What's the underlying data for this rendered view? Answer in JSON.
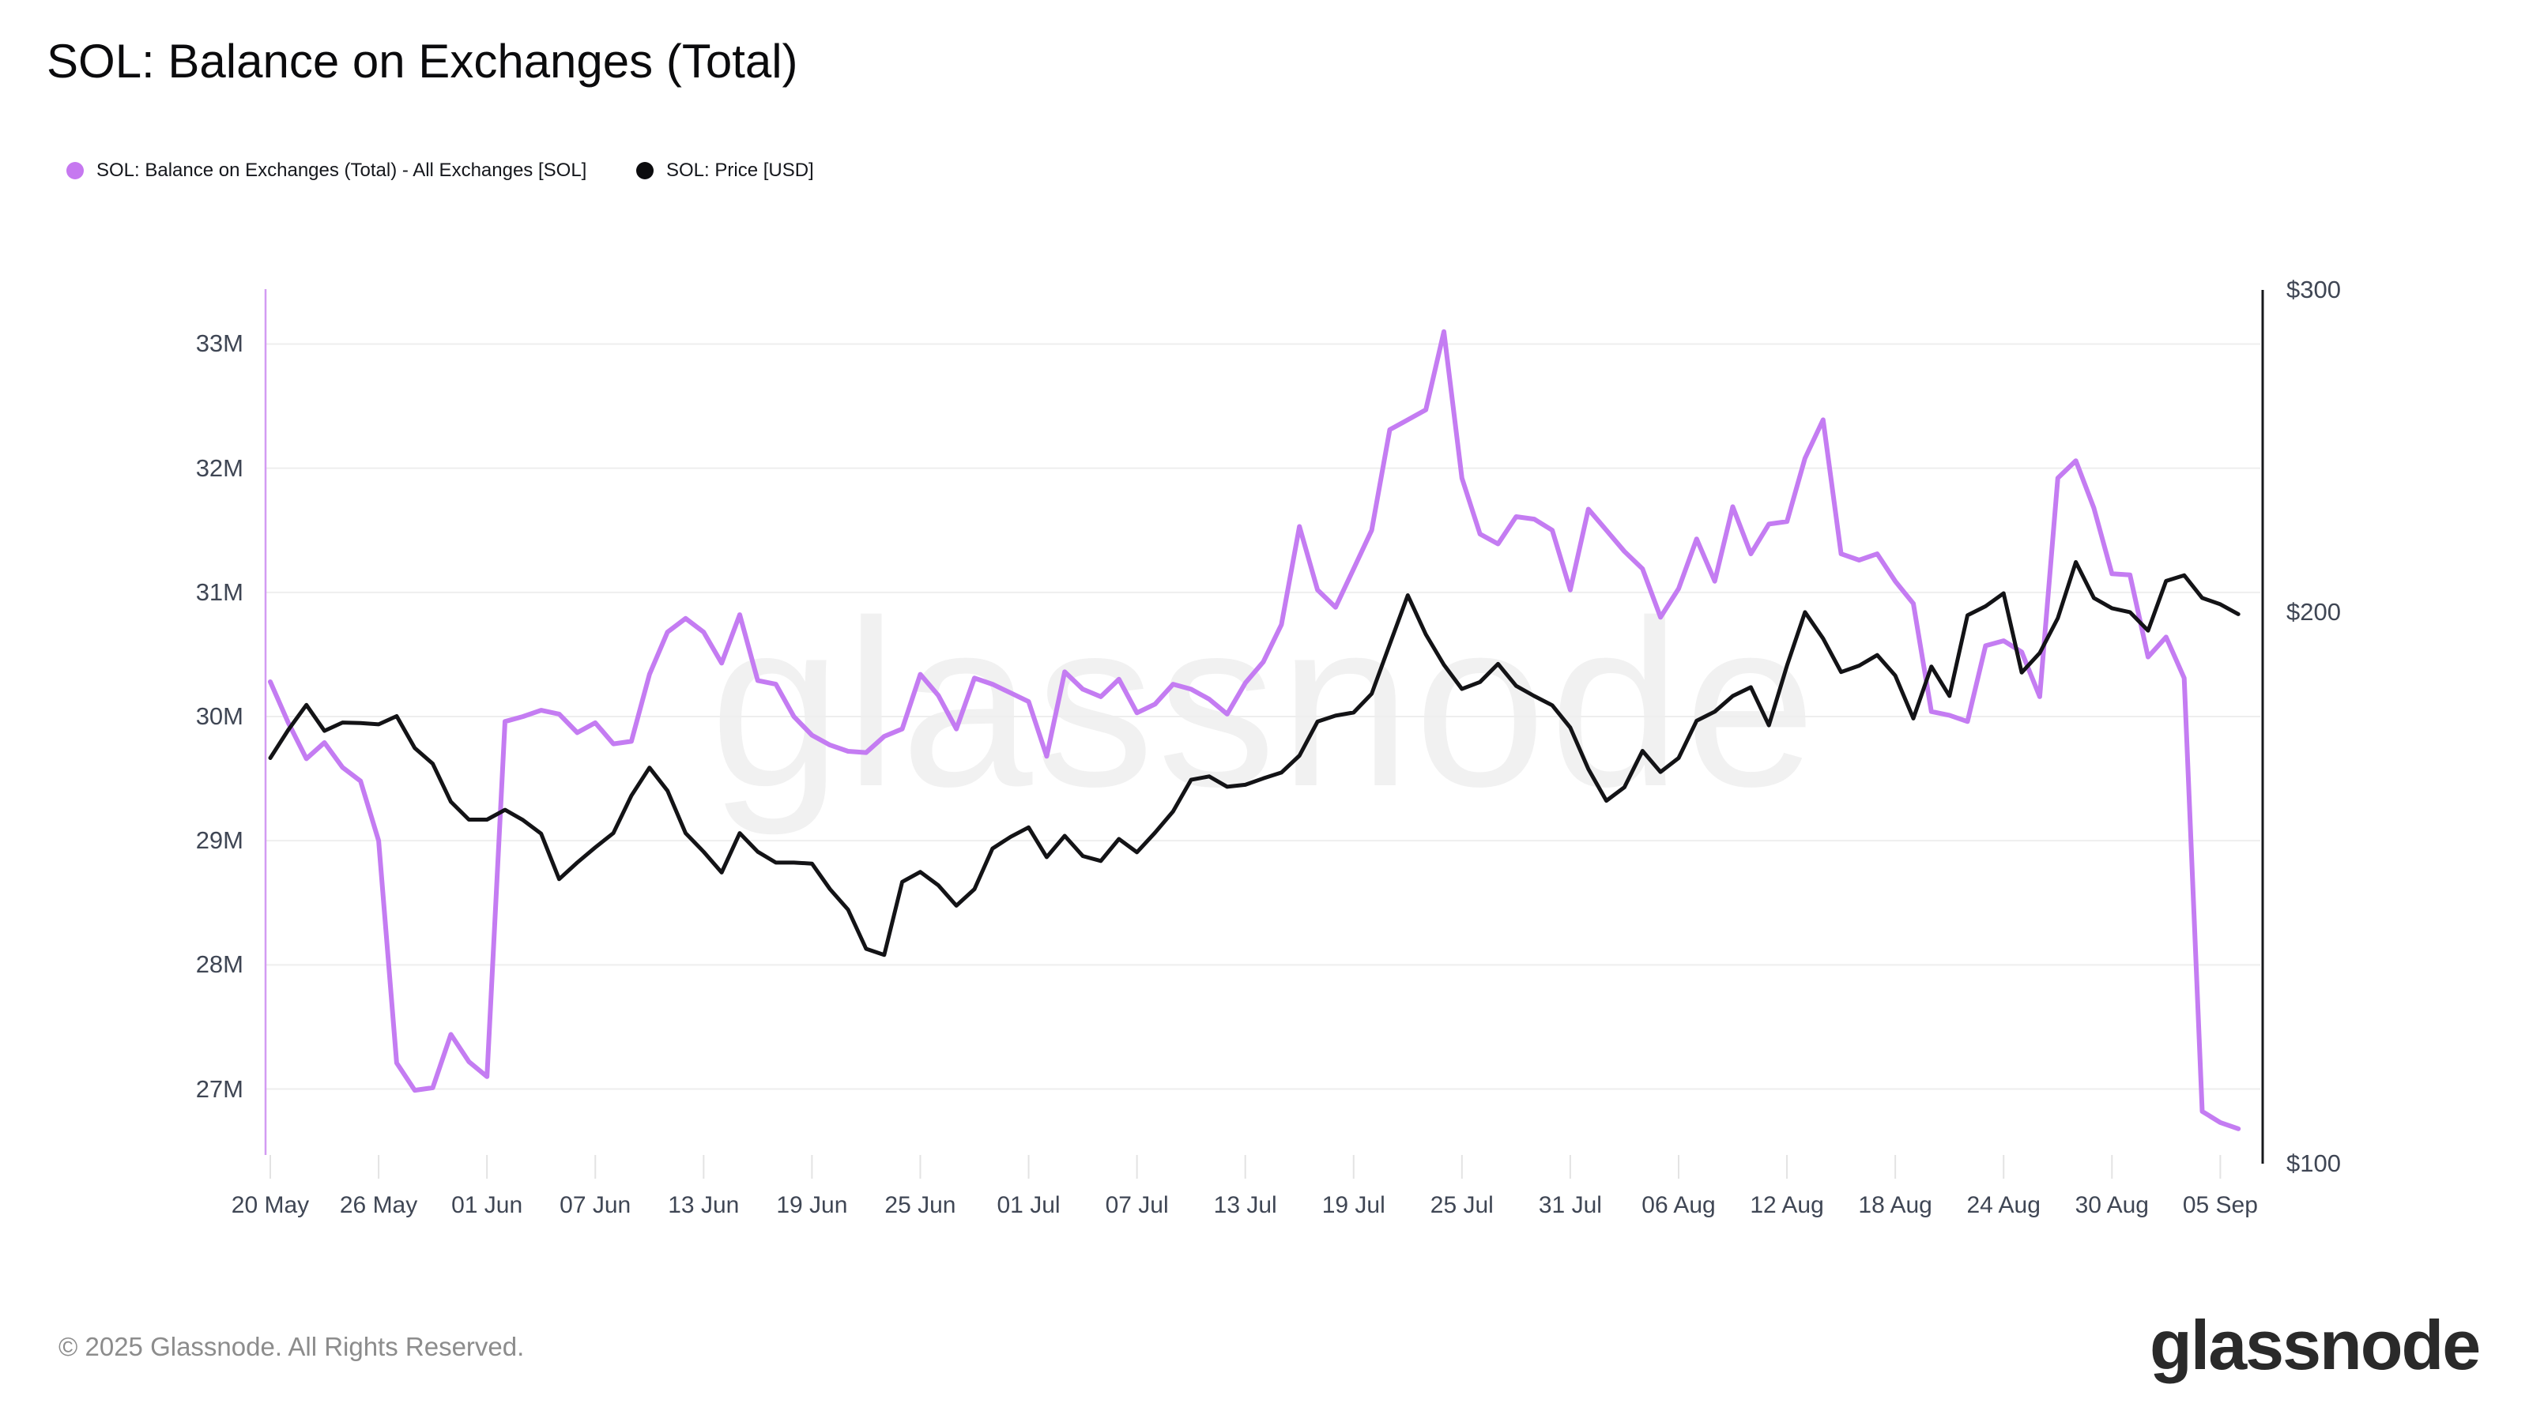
{
  "header": {
    "title": "SOL: Balance on Exchanges (Total)"
  },
  "legend": [
    {
      "label": "SOL: Balance on Exchanges (Total) - All Exchanges [SOL]",
      "color": "#c678f0"
    },
    {
      "label": "SOL: Price [USD]",
      "color": "#0c0c0e"
    }
  ],
  "colors": {
    "balance_line": "#c47cf2",
    "price_line": "#131316",
    "left_axis_line": "#d29bf2",
    "right_axis_line": "#17181c",
    "gridline": "#eeeeee",
    "tick": "#e3e3e3",
    "axis_text": "#3f4654"
  },
  "chart_data": {
    "type": "line",
    "title": "SOL: Balance on Exchanges (Total)",
    "watermark": "glassnode",
    "grid": "horizontal",
    "legend_position": "top-left",
    "x_unit": "date",
    "dates": [
      "20 May",
      "21 May",
      "22 May",
      "23 May",
      "24 May",
      "25 May",
      "26 May",
      "27 May",
      "28 May",
      "29 May",
      "30 May",
      "31 May",
      "01 Jun",
      "02 Jun",
      "03 Jun",
      "04 Jun",
      "05 Jun",
      "06 Jun",
      "07 Jun",
      "08 Jun",
      "09 Jun",
      "10 Jun",
      "11 Jun",
      "12 Jun",
      "13 Jun",
      "14 Jun",
      "15 Jun",
      "16 Jun",
      "17 Jun",
      "18 Jun",
      "19 Jun",
      "20 Jun",
      "21 Jun",
      "22 Jun",
      "23 Jun",
      "24 Jun",
      "25 Jun",
      "26 Jun",
      "27 Jun",
      "28 Jun",
      "29 Jun",
      "30 Jun",
      "01 Jul",
      "02 Jul",
      "03 Jul",
      "04 Jul",
      "05 Jul",
      "06 Jul",
      "07 Jul",
      "08 Jul",
      "09 Jul",
      "10 Jul",
      "11 Jul",
      "12 Jul",
      "13 Jul",
      "14 Jul",
      "15 Jul",
      "16 Jul",
      "17 Jul",
      "18 Jul",
      "19 Jul",
      "20 Jul",
      "21 Jul",
      "22 Jul",
      "23 Jul",
      "24 Jul",
      "25 Jul",
      "26 Jul",
      "27 Jul",
      "28 Jul",
      "29 Jul",
      "30 Jul",
      "31 Jul",
      "01 Aug",
      "02 Aug",
      "03 Aug",
      "04 Aug",
      "05 Aug",
      "06 Aug",
      "07 Aug",
      "08 Aug",
      "09 Aug",
      "10 Aug",
      "11 Aug",
      "12 Aug",
      "13 Aug",
      "14 Aug",
      "15 Aug",
      "16 Aug",
      "17 Aug",
      "18 Aug",
      "19 Aug",
      "20 Aug",
      "21 Aug",
      "22 Aug",
      "23 Aug",
      "24 Aug",
      "25 Aug",
      "26 Aug",
      "27 Aug",
      "28 Aug",
      "29 Aug",
      "30 Aug",
      "31 Aug",
      "01 Sep",
      "02 Sep",
      "03 Sep",
      "04 Sep",
      "05 Sep",
      "06 Sep"
    ],
    "x_ticks": [
      {
        "label": "20 May",
        "day": 0
      },
      {
        "label": "26 May",
        "day": 6
      },
      {
        "label": "01 Jun",
        "day": 12
      },
      {
        "label": "07 Jun",
        "day": 18
      },
      {
        "label": "13 Jun",
        "day": 24
      },
      {
        "label": "19 Jun",
        "day": 30
      },
      {
        "label": "25 Jun",
        "day": 36
      },
      {
        "label": "01 Jul",
        "day": 42
      },
      {
        "label": "07 Jul",
        "day": 48
      },
      {
        "label": "13 Jul",
        "day": 54
      },
      {
        "label": "19 Jul",
        "day": 60
      },
      {
        "label": "25 Jul",
        "day": 66
      },
      {
        "label": "31 Jul",
        "day": 72
      },
      {
        "label": "06 Aug",
        "day": 78
      },
      {
        "label": "12 Aug",
        "day": 84
      },
      {
        "label": "18 Aug",
        "day": 90
      },
      {
        "label": "24 Aug",
        "day": 96
      },
      {
        "label": "30 Aug",
        "day": 102
      },
      {
        "label": "05 Sep",
        "day": 108
      }
    ],
    "y_left": {
      "title": "Balance on Exchanges [SOL]",
      "tick_labels": [
        "33M",
        "32M",
        "31M",
        "30M",
        "29M",
        "28M",
        "27M"
      ],
      "tick_values": [
        33,
        32,
        31,
        30,
        29,
        28,
        27
      ],
      "unit": "M SOL",
      "scale": "linear"
    },
    "y_right": {
      "title": "Price [USD]",
      "tick_labels": [
        "$300",
        "$200",
        "$100"
      ],
      "tick_values": [
        300,
        200,
        100
      ],
      "unit": "USD",
      "scale": "log"
    },
    "series": [
      {
        "name": "SOL: Balance on Exchanges (Total) - All Exchanges [SOL]",
        "axis": "left",
        "color": "#c47cf2",
        "values": [
          30.28,
          29.95,
          29.66,
          29.79,
          29.59,
          29.48,
          29.0,
          27.21,
          26.99,
          27.01,
          27.44,
          27.22,
          27.1,
          29.96,
          30.0,
          30.05,
          30.02,
          29.87,
          29.95,
          29.78,
          29.8,
          30.34,
          30.68,
          30.79,
          30.68,
          30.43,
          30.82,
          30.29,
          30.26,
          30.0,
          29.85,
          29.77,
          29.72,
          29.71,
          29.84,
          29.9,
          30.34,
          30.17,
          29.9,
          30.31,
          30.26,
          30.19,
          30.12,
          29.68,
          30.36,
          30.22,
          30.16,
          30.3,
          30.03,
          30.1,
          30.26,
          30.22,
          30.14,
          30.02,
          30.27,
          30.44,
          30.74,
          31.53,
          31.02,
          30.88,
          31.19,
          31.5,
          32.31,
          32.39,
          32.47,
          33.1,
          31.92,
          31.47,
          31.39,
          31.61,
          31.59,
          31.5,
          31.02,
          31.67,
          31.5,
          31.33,
          31.19,
          30.8,
          31.03,
          31.43,
          31.09,
          31.69,
          31.31,
          31.55,
          31.57,
          32.08,
          32.39,
          31.31,
          31.26,
          31.31,
          31.09,
          30.91,
          30.04,
          30.01,
          29.96,
          30.57,
          30.61,
          30.52,
          30.16,
          31.92,
          32.06,
          31.68,
          31.15,
          31.14,
          30.48,
          30.64,
          30.31,
          26.82,
          26.73,
          26.68
        ]
      },
      {
        "name": "SOL: Price [USD]",
        "axis": "right",
        "color": "#131316",
        "values": [
          166.5,
          172.5,
          178.0,
          172.3,
          174.1,
          174.0,
          173.7,
          175.5,
          168.6,
          165.3,
          157.6,
          154.1,
          154.1,
          156.0,
          154.0,
          151.4,
          143.0,
          146.0,
          148.8,
          151.5,
          158.8,
          164.5,
          159.8,
          151.5,
          148.0,
          144.2,
          151.5,
          148.0,
          146.0,
          146.0,
          145.8,
          141.2,
          137.6,
          131.0,
          130.0,
          142.5,
          144.3,
          141.9,
          138.3,
          141.2,
          148.6,
          150.8,
          152.6,
          147.0,
          151.0,
          147.2,
          146.3,
          150.4,
          147.9,
          151.6,
          155.7,
          162.0,
          162.7,
          160.6,
          161.0,
          162.3,
          163.5,
          167.0,
          174.3,
          175.6,
          176.3,
          180.5,
          192.1,
          204.3,
          194.5,
          187.2,
          181.6,
          183.2,
          187.4,
          182.3,
          180.0,
          177.9,
          173.0,
          164.2,
          157.8,
          160.5,
          168.0,
          163.6,
          166.5,
          174.5,
          176.5,
          180.0,
          182.0,
          173.5,
          187.0,
          200.0,
          193.5,
          185.5,
          187.0,
          189.5,
          184.7,
          175.0,
          186.8,
          180.0,
          199.2,
          201.5,
          204.8,
          185.4,
          190.0,
          198.5,
          213.0,
          203.6,
          201.0,
          200.0,
          195.4,
          208.0,
          209.5,
          203.6,
          202.0,
          199.5
        ]
      }
    ]
  },
  "footer": {
    "copyright": "© 2025 Glassnode. All Rights Reserved.",
    "logo": "glassnode"
  }
}
